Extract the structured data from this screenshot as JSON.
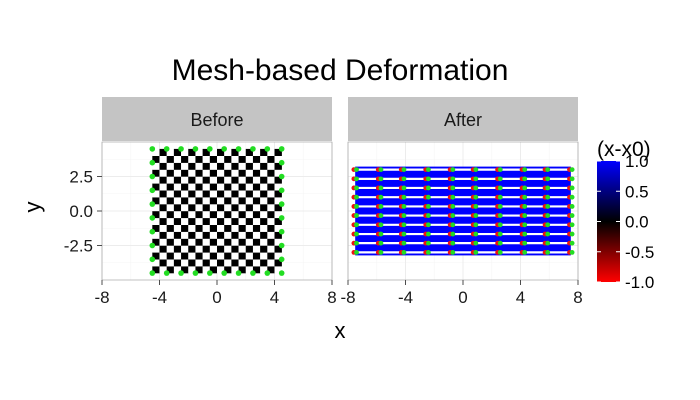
{
  "chart_data": {
    "type": "scatter",
    "title": "Mesh-based Deformation",
    "xlabel": "x",
    "ylabel": "y",
    "xlim": [
      -8,
      8
    ],
    "ylim": [
      -5,
      5
    ],
    "x_ticks": [
      -8,
      -4,
      0,
      4,
      8
    ],
    "x_tick_labels": [
      "-8",
      "-4",
      "0",
      "4",
      "8"
    ],
    "y_ticks": [
      -2.5,
      0.0,
      2.5
    ],
    "y_tick_labels": [
      "-2.5",
      "0.0",
      "2.5"
    ],
    "grid": true,
    "facets": [
      {
        "label": "Before",
        "grid_x": [
          -4.5,
          -3.5,
          -2.5,
          -1.5,
          -0.5,
          0.5,
          1.5,
          2.5,
          3.5,
          4.5
        ],
        "grid_y": [
          -4.5,
          -3.5,
          -2.5,
          -1.5,
          -0.5,
          0.5,
          1.5,
          2.5,
          3.5,
          4.5
        ],
        "mesh_resolution": 18,
        "fill_value_pattern": "checkerboard",
        "point_color": "#22dd22"
      },
      {
        "label": "After",
        "grid_x": [
          -7.5,
          -5.8,
          -4.2,
          -2.5,
          -0.8,
          0.8,
          2.5,
          4.2,
          5.8,
          7.5
        ],
        "grid_y": [
          -3.0,
          -2.33,
          -1.67,
          -1.0,
          -0.33,
          0.33,
          1.0,
          1.67,
          2.33,
          3.0
        ],
        "horizontal_line_color": "#ffffff",
        "background_value": 1.0,
        "point_colors": [
          "#ee1111",
          "#22dd22"
        ]
      }
    ],
    "legend": {
      "title": "(x-x0)",
      "position": "right",
      "breaks": [
        1.0,
        0.5,
        0.0,
        -0.5,
        -1.0
      ],
      "labels": [
        "1.0",
        "0.5",
        "0.0",
        "-0.5",
        "-1.0"
      ],
      "range": [
        -1.0,
        1.0
      ],
      "colors": {
        "high": "#0000ff",
        "mid": "#000000",
        "low": "#ff0000"
      }
    },
    "colors": {
      "strip_bg": "#c4c4c4",
      "grid_major": "#ececec",
      "grid_minor": "#f5f5f5",
      "panel_border": "#999999"
    }
  }
}
